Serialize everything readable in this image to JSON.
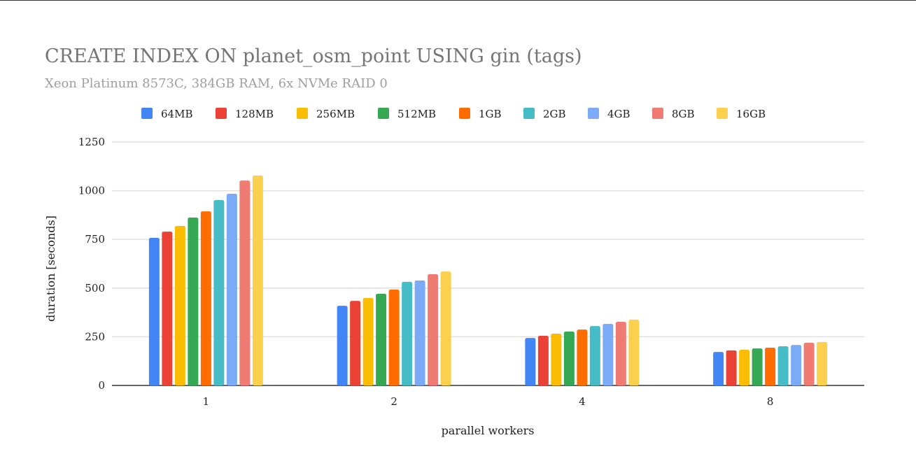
{
  "chart_data": {
    "type": "bar",
    "title": "CREATE INDEX ON planet_osm_point USING gin (tags)",
    "subtitle": "Xeon Platinum 8573C, 384GB RAM, 6x NVMe RAID 0",
    "xlabel": "parallel workers",
    "ylabel": "duration [seconds]",
    "ylim": [
      0,
      1250
    ],
    "yticks": [
      "0",
      "250",
      "500",
      "750",
      "1000",
      "1250"
    ],
    "grid": true,
    "legend_position": "top",
    "categories": [
      "1",
      "2",
      "4",
      "8"
    ],
    "series": [
      {
        "name": "64MB",
        "color": "#4285F4",
        "values": [
          758,
          409,
          244,
          172
        ]
      },
      {
        "name": "128MB",
        "color": "#EA4335",
        "values": [
          790,
          434,
          255,
          180
        ]
      },
      {
        "name": "256MB",
        "color": "#FBBC04",
        "values": [
          819,
          449,
          266,
          183
        ]
      },
      {
        "name": "512MB",
        "color": "#34A853",
        "values": [
          862,
          471,
          277,
          190
        ]
      },
      {
        "name": "1GB",
        "color": "#FF6D01",
        "values": [
          894,
          492,
          287,
          194
        ]
      },
      {
        "name": "2GB",
        "color": "#46BDC6",
        "values": [
          952,
          532,
          305,
          201
        ]
      },
      {
        "name": "4GB",
        "color": "#7BAAF7",
        "values": [
          984,
          539,
          316,
          208
        ]
      },
      {
        "name": "8GB",
        "color": "#F07B72",
        "values": [
          1052,
          571,
          327,
          219
        ]
      },
      {
        "name": "16GB",
        "color": "#FCD04F",
        "values": [
          1078,
          585,
          338,
          223
        ]
      }
    ]
  }
}
